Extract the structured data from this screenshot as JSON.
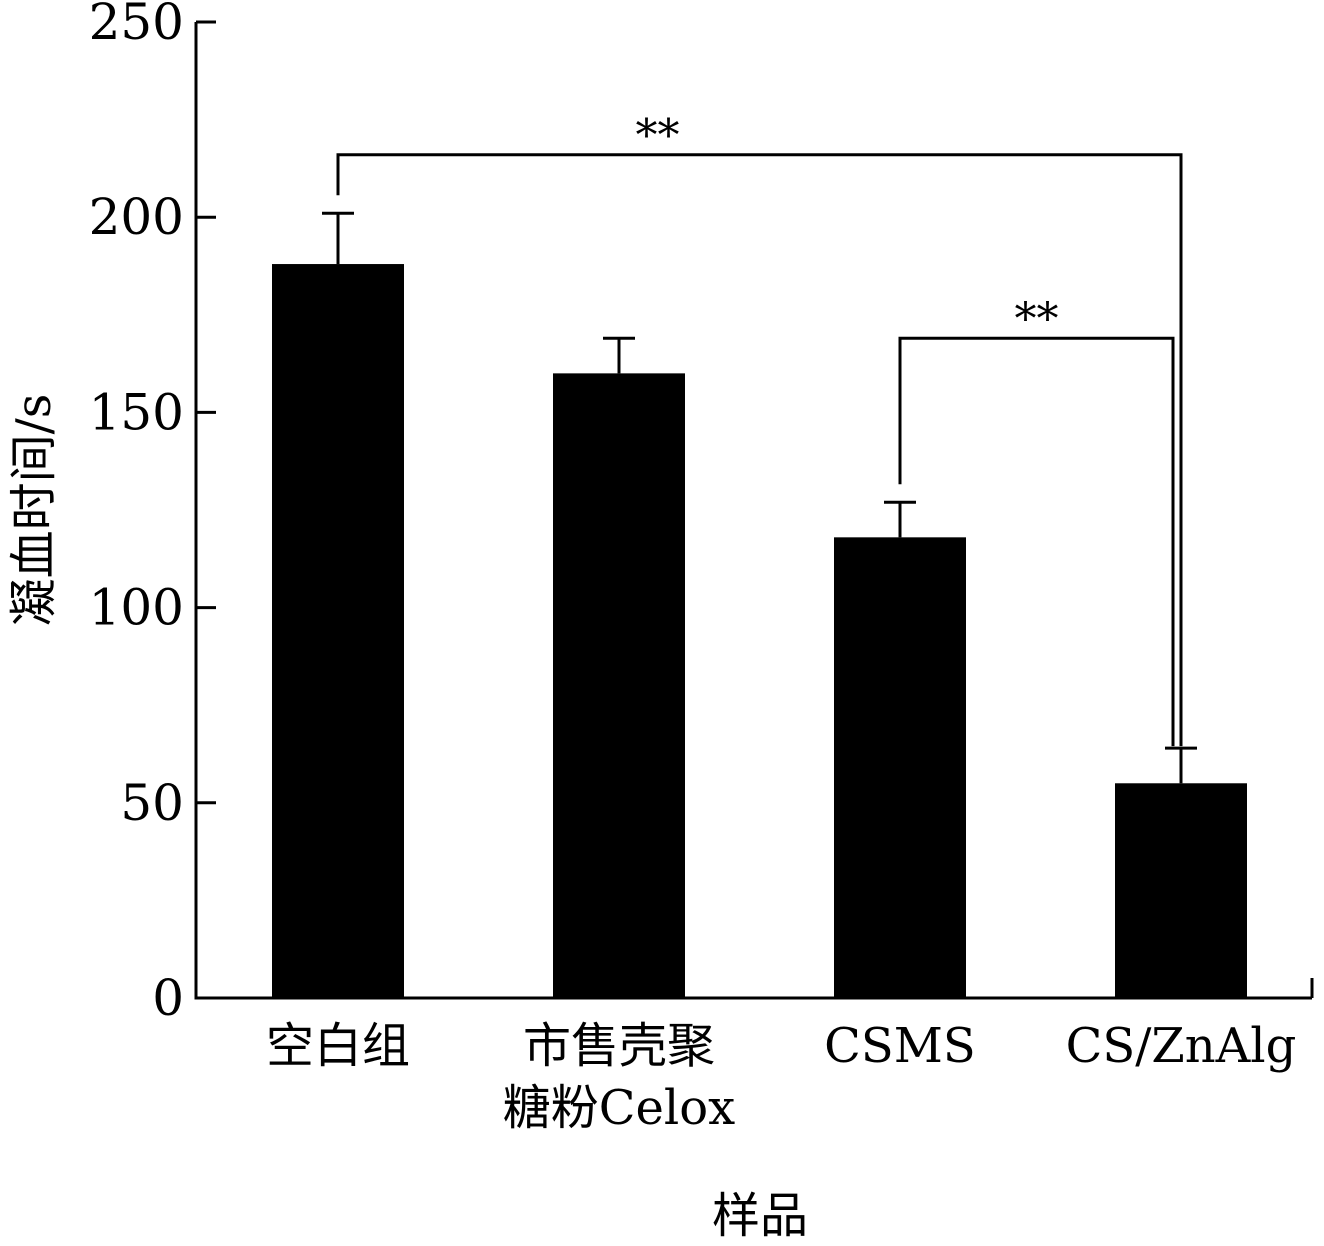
{
  "chart_data": {
    "type": "bar",
    "categories": [
      "空白组",
      "市售壳聚\n糖粉Celox",
      "CSMS",
      "CS/ZnAlg"
    ],
    "values": [
      188,
      160,
      118,
      55
    ],
    "errors": [
      13,
      9,
      9,
      9
    ],
    "xlabel": "样品",
    "ylabel": "凝血时间/s",
    "ylim": [
      0,
      250
    ],
    "yticks": [
      0,
      50,
      100,
      150,
      200,
      250
    ],
    "grid": false,
    "bar_color": "#000000",
    "significance": [
      {
        "from": 0,
        "to": 3,
        "label": "**",
        "level": 216
      },
      {
        "from": 2,
        "to": 3,
        "label": "**",
        "level": 169
      }
    ]
  }
}
